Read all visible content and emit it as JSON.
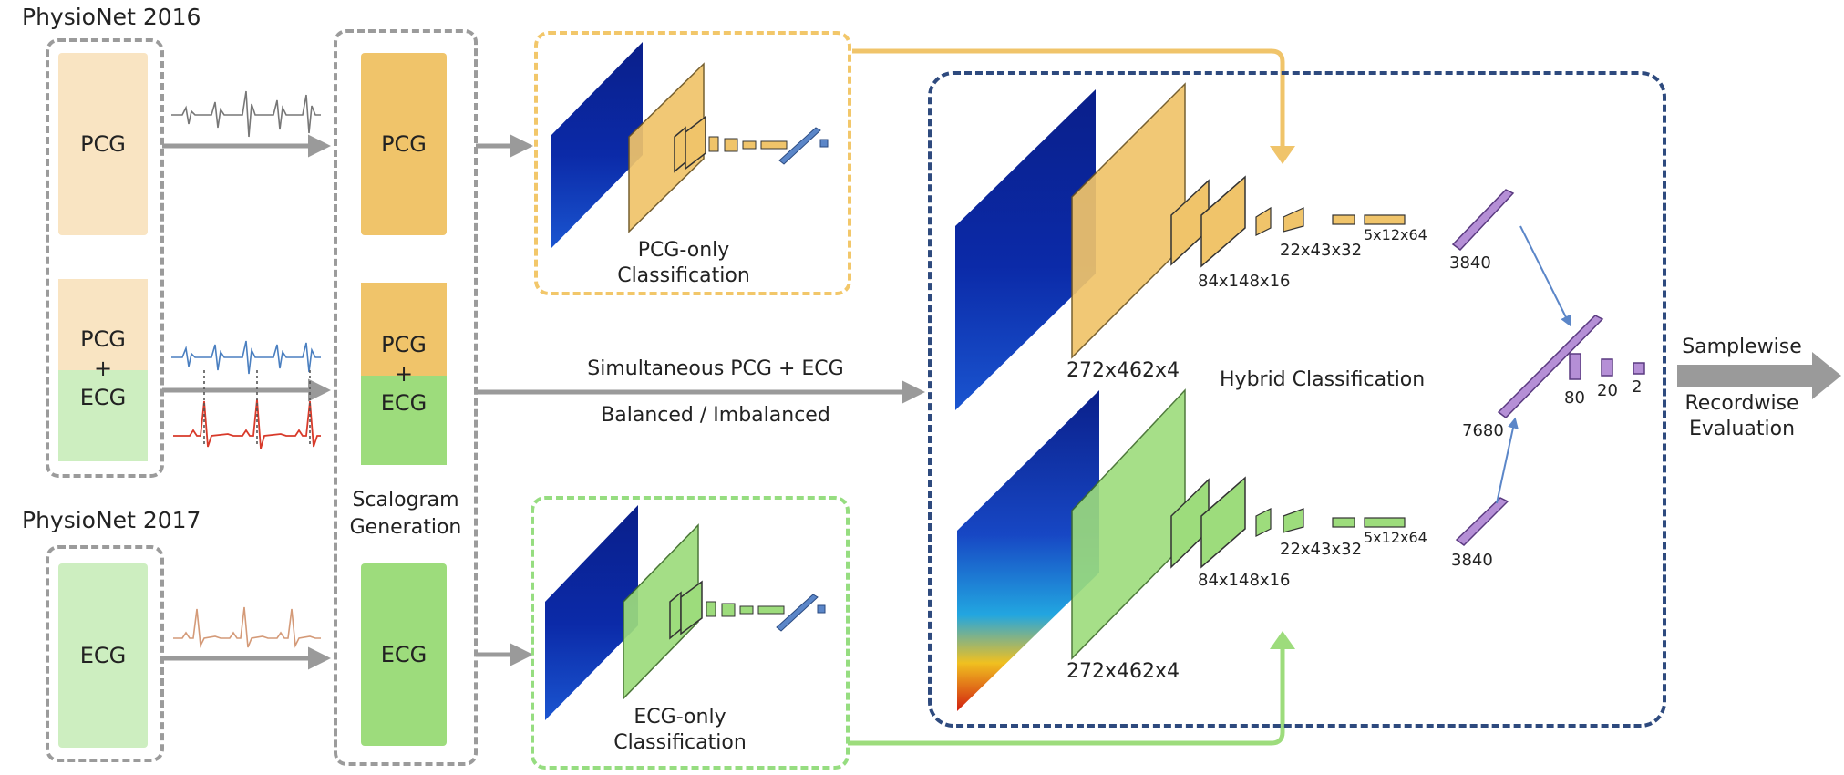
{
  "datasets": {
    "physionet2016": "PhysioNet 2016",
    "physionet2017": "PhysioNet 2017"
  },
  "inputs": {
    "pcg": "PCG",
    "pcg_ecg_top": "PCG",
    "plus": "+",
    "pcg_ecg_bottom": "ECG",
    "ecg": "ECG"
  },
  "scalogram": {
    "pcg": "PCG",
    "pcg_ecg_top": "PCG",
    "plus": "+",
    "pcg_ecg_bottom": "ECG",
    "ecg": "ECG",
    "label_line1": "Scalogram",
    "label_line2": "Generation"
  },
  "pcg_only": {
    "line1": "PCG-only",
    "line2": "Classification"
  },
  "ecg_only": {
    "line1": "ECG-only",
    "line2": "Classification"
  },
  "middle": {
    "line1": "Simultaneous PCG + ECG",
    "line2": "Balanced / Imbalanced"
  },
  "hybrid": {
    "title": "Hybrid Classification",
    "top_input_dim": "272x462x4",
    "top_conv_dim": "84x148x16",
    "top_pool_dim": "22x43x32",
    "top_final_dim": "5x12x64",
    "top_flat": "3840",
    "bottom_input_dim": "272x462x4",
    "bottom_conv_dim": "84x148x16",
    "bottom_pool_dim": "22x43x32",
    "bottom_final_dim": "5x12x64",
    "bottom_flat": "3840",
    "concat": "7680",
    "fc1": "80",
    "fc2": "20",
    "fc3": "2"
  },
  "evaluation": {
    "line1": "Samplewise",
    "line2": "Recordwise",
    "line3": "Evaluation"
  },
  "colors": {
    "pcg_light": "#f9e4c2",
    "pcg_dark": "#f0c46a",
    "ecg_light": "#cdeec0",
    "ecg_dark": "#9ddc7c",
    "navy": "#2e4a7e",
    "purple": "#b58fd6",
    "blue_fc": "#5b86c8"
  }
}
